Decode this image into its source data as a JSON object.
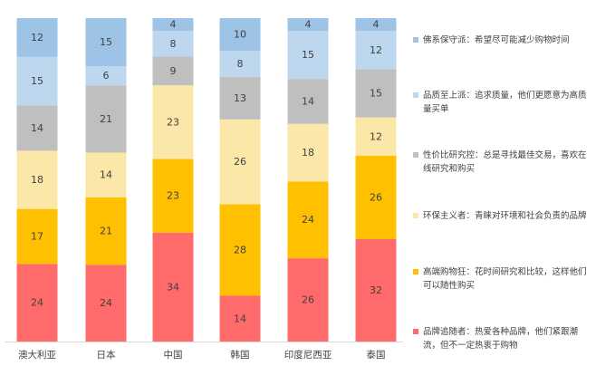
{
  "chart_data": {
    "type": "bar",
    "stacked": true,
    "categories": [
      "澳大利亚",
      "日本",
      "中国",
      "韩国",
      "印度尼西亚",
      "泰国"
    ],
    "series": [
      {
        "name": "品牌追随者：热爱各种品牌，他们紧跟潮流，但不一定热衷于购物",
        "color": "#ff6b6b",
        "values": [
          24,
          24,
          34,
          14,
          26,
          32
        ]
      },
      {
        "name": "高端购物狂：花时间研究和比较，这样他们可以随性购买",
        "color": "#ffc000",
        "values": [
          17,
          21,
          23,
          28,
          24,
          26
        ]
      },
      {
        "name": "环保主义者：青睐对环境和社会负责的品牌",
        "color": "#fbe7a8",
        "values": [
          18,
          14,
          23,
          26,
          18,
          12
        ]
      },
      {
        "name": "性价比研究控：总是寻找最佳交易，喜欢在线研究和购买",
        "color": "#bfbfbf",
        "values": [
          14,
          21,
          9,
          13,
          14,
          15
        ]
      },
      {
        "name": "品质至上派：追求质量，他们更愿意为高质量买单",
        "color": "#bdd7ee",
        "values": [
          15,
          6,
          8,
          8,
          15,
          12
        ]
      },
      {
        "name": "佛系保守派：希望尽可能减少购物时间",
        "color": "#9dc3e6",
        "values": [
          12,
          15,
          4,
          10,
          4,
          4
        ]
      }
    ],
    "legend_position": "right",
    "legend_order": "reverse",
    "grid": false,
    "data_labels": true
  }
}
